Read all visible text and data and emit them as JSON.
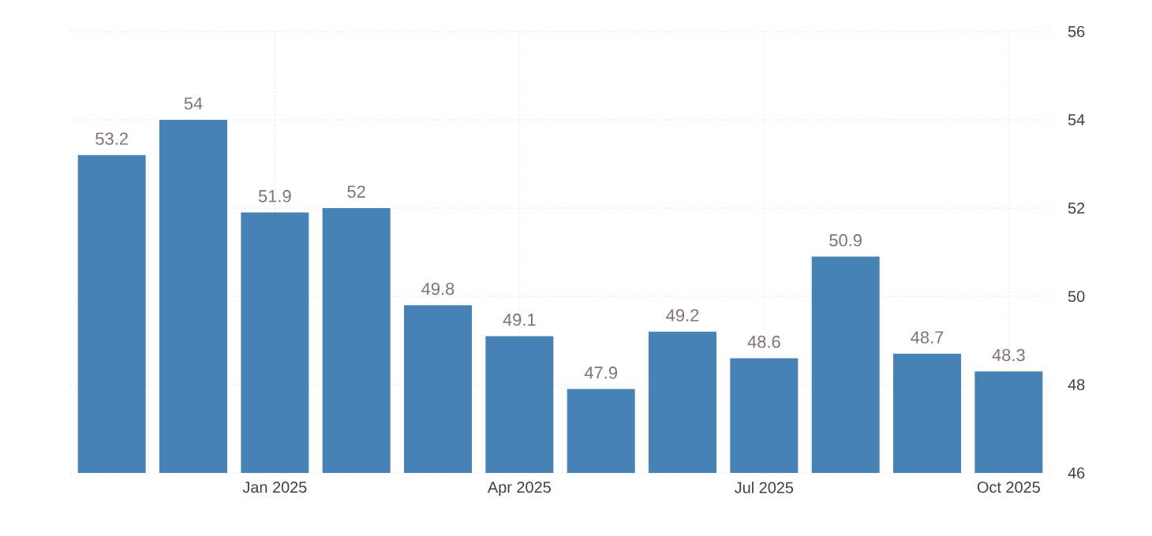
{
  "chart_data": {
    "type": "bar",
    "categories": [
      null,
      null,
      "Jan 2025",
      null,
      null,
      "Apr 2025",
      null,
      null,
      "Jul 2025",
      null,
      null,
      "Oct 2025"
    ],
    "values": [
      53.2,
      54,
      51.9,
      52,
      49.8,
      49.1,
      47.9,
      49.2,
      48.6,
      50.9,
      48.7,
      48.3
    ],
    "color": "#4682b4",
    "ylim": [
      46,
      56
    ],
    "yticks": [
      46,
      48,
      50,
      52,
      54,
      56
    ],
    "grid": true,
    "data_labels": true
  }
}
